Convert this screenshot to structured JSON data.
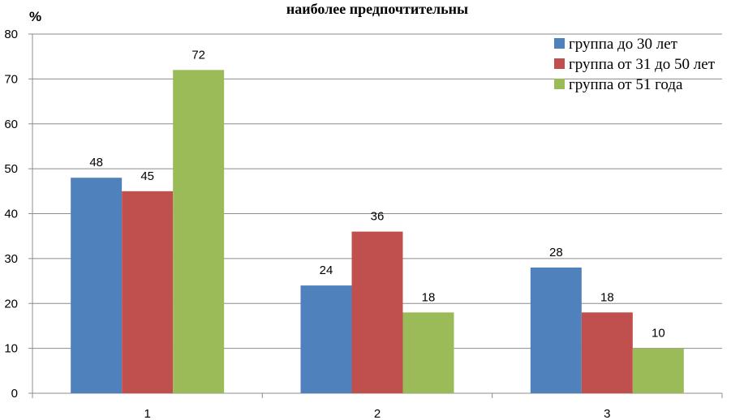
{
  "chart_data": {
    "type": "bar",
    "title": "наиболее предпочтительны",
    "ylabel": "%",
    "xlabel": "",
    "categories": [
      "1",
      "2",
      "3"
    ],
    "ylim": [
      0,
      80
    ],
    "yticks": [
      0,
      10,
      20,
      30,
      40,
      50,
      60,
      70,
      80
    ],
    "grid": true,
    "legend_position": "top-right",
    "series": [
      {
        "name": "группа до 30 лет",
        "color": "#4F81BD",
        "values": [
          48,
          24,
          28
        ],
        "labels": [
          "48",
          "24",
          "28"
        ]
      },
      {
        "name": "группа от 31 до 50 лет",
        "color": "#C0504D",
        "values": [
          45,
          36,
          18
        ],
        "labels": [
          "45",
          "36",
          "18"
        ]
      },
      {
        "name": "группа от 51 года",
        "color": "#9BBB59",
        "values": [
          72,
          18,
          10
        ],
        "labels": [
          "72",
          "18",
          "10"
        ]
      }
    ]
  }
}
